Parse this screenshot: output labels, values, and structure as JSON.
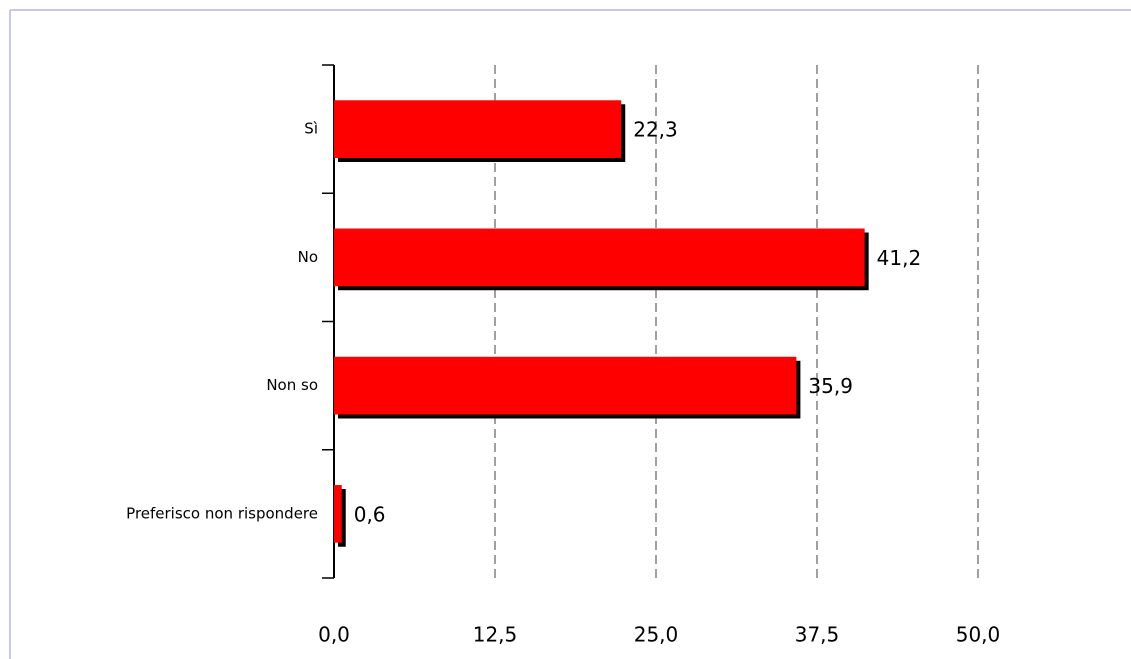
{
  "chart_data": {
    "type": "bar",
    "orientation": "horizontal",
    "categories": [
      "Sì",
      "No",
      "Non so",
      "Preferisco non rispondere"
    ],
    "values": [
      22.3,
      41.2,
      35.9,
      0.6
    ],
    "value_labels": [
      "22,3",
      "41,2",
      "35,9",
      "0,6"
    ],
    "color": "#ff0000",
    "xlim": [
      0,
      50
    ],
    "xticks": [
      {
        "value": 0,
        "label": "0,0"
      },
      {
        "value": 12.5,
        "label": "12,5"
      },
      {
        "value": 25,
        "label": "25,0"
      },
      {
        "value": 37.5,
        "label": "37,5"
      },
      {
        "value": 50,
        "label": "50,0"
      }
    ],
    "grid": true
  }
}
